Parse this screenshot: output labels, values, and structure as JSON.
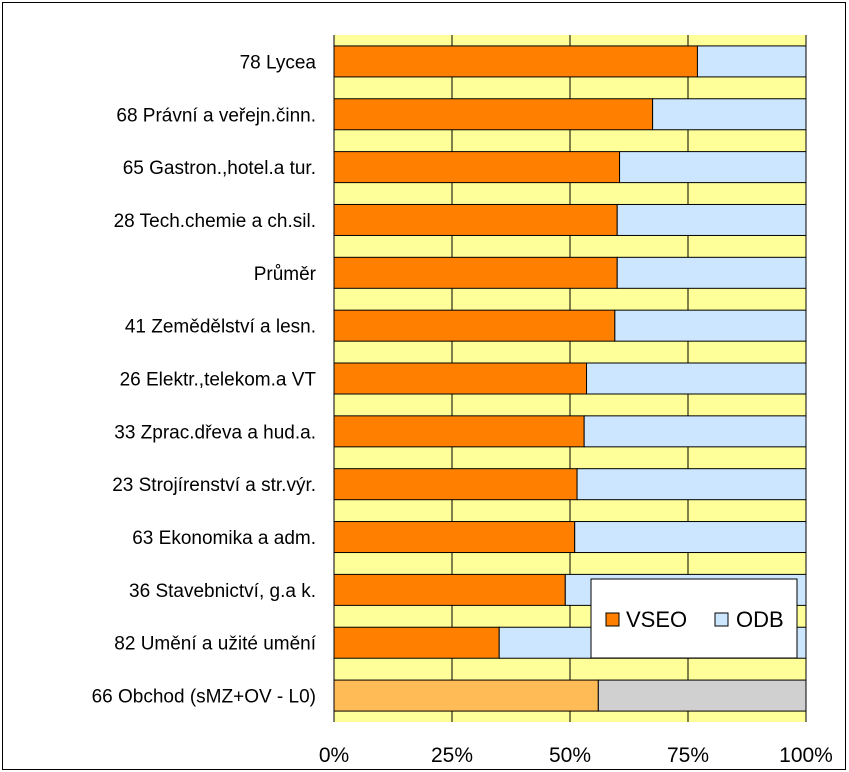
{
  "chart_data": {
    "type": "bar",
    "orientation": "horizontal",
    "stacked": true,
    "percent_stacked": true,
    "categories": [
      "78 Lycea",
      "68 Právní a veřejn.činn.",
      "65 Gastron.,hotel.a tur.",
      "28 Tech.chemie a ch.sil.",
      "Průměr",
      "41 Zemědělství a lesn.",
      "26 Elektr.,telekom.a VT",
      "33 Zprac.dřeva a hud.a.",
      "23 Strojírenství a str.výr.",
      "63 Ekonomika a adm.",
      "36 Stavebnictví, g.a k.",
      "82 Umění a užité umění",
      "66 Obchod (sMZ+OV - L0)"
    ],
    "series": [
      {
        "name": "VSEO",
        "values": [
          77,
          67.5,
          60.5,
          60,
          60,
          59.5,
          53.5,
          53,
          51.5,
          51,
          49,
          35,
          56
        ]
      },
      {
        "name": "ODB",
        "values": [
          23,
          32.5,
          39.5,
          40,
          40,
          40.5,
          46.5,
          47,
          48.5,
          49,
          51,
          65,
          44
        ]
      }
    ],
    "highlight_category": "66 Obchod (sMZ+OV - L0)",
    "xlim": [
      0,
      100
    ],
    "x_ticks": [
      "0%",
      "25%",
      "50%",
      "75%",
      "100%"
    ],
    "gridlines": "vertical",
    "plot_background": "#ffff99",
    "legend_position": "inside-bottom-right",
    "colors": {
      "VSEO": "#ff8000",
      "ODB": "#cce6ff",
      "VSEO_highlight": "#ffbb55",
      "ODB_highlight": "#d0d0d0"
    }
  }
}
